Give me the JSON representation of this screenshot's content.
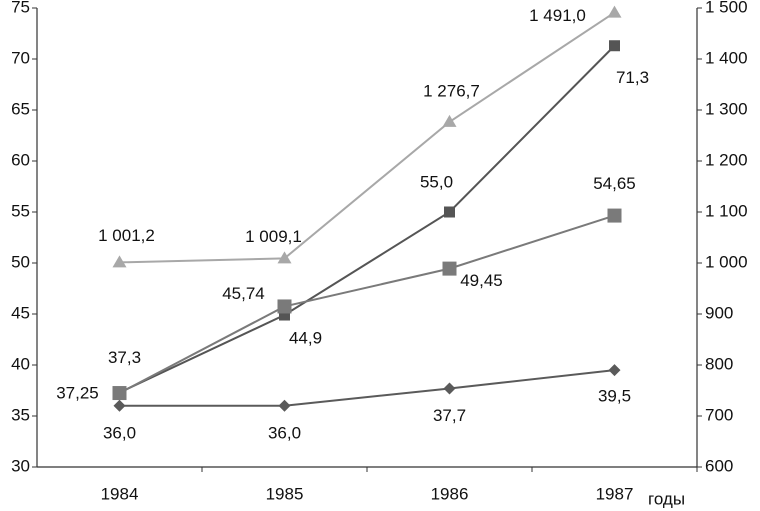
{
  "chart_data": {
    "type": "line",
    "x_label": "годы",
    "categories": [
      "1984",
      "1985",
      "1986",
      "1987"
    ],
    "ylim": [
      30,
      75
    ],
    "yticks": [
      30,
      35,
      40,
      45,
      50,
      55,
      60,
      65,
      70,
      75
    ],
    "y2lim": [
      600,
      1500
    ],
    "y2ticks": [
      600,
      700,
      800,
      900,
      {
        "value": 1000,
        "label": "1 000"
      },
      {
        "value": 1100,
        "label": "1 100"
      },
      {
        "value": 1200,
        "label": "1 200"
      },
      {
        "value": 1300,
        "label": "1 300"
      },
      {
        "value": 1400,
        "label": "1 400"
      },
      {
        "value": 1500,
        "label": "1 500"
      }
    ],
    "series": [
      {
        "color": "#5a5a5a",
        "marker": "diamond",
        "values": [
          36.0,
          36.0,
          37.7,
          39.5
        ],
        "value_labels": [
          "36,0",
          "36,0",
          "37,7",
          "39,5"
        ]
      },
      {
        "color": "#555555",
        "marker": "square",
        "values": [
          37.3,
          44.9,
          55.0,
          71.3
        ],
        "value_labels": [
          "37,3",
          "44,9",
          "55,0",
          "71,3"
        ]
      },
      {
        "color": "#7a7a7a",
        "marker": "big-square",
        "values": [
          37.25,
          45.74,
          49.45,
          54.65
        ],
        "value_labels": [
          "37,25",
          "45,74",
          "49,45",
          "54,65"
        ]
      },
      {
        "color": "#a8a8a8",
        "marker": "triangle",
        "axis": "y2",
        "values": [
          1001.2,
          1009.1,
          1276.7,
          1491.0
        ],
        "value_labels": [
          "1 001,2",
          "1 009,1",
          "1 276,7",
          "1 491,0"
        ]
      }
    ]
  }
}
